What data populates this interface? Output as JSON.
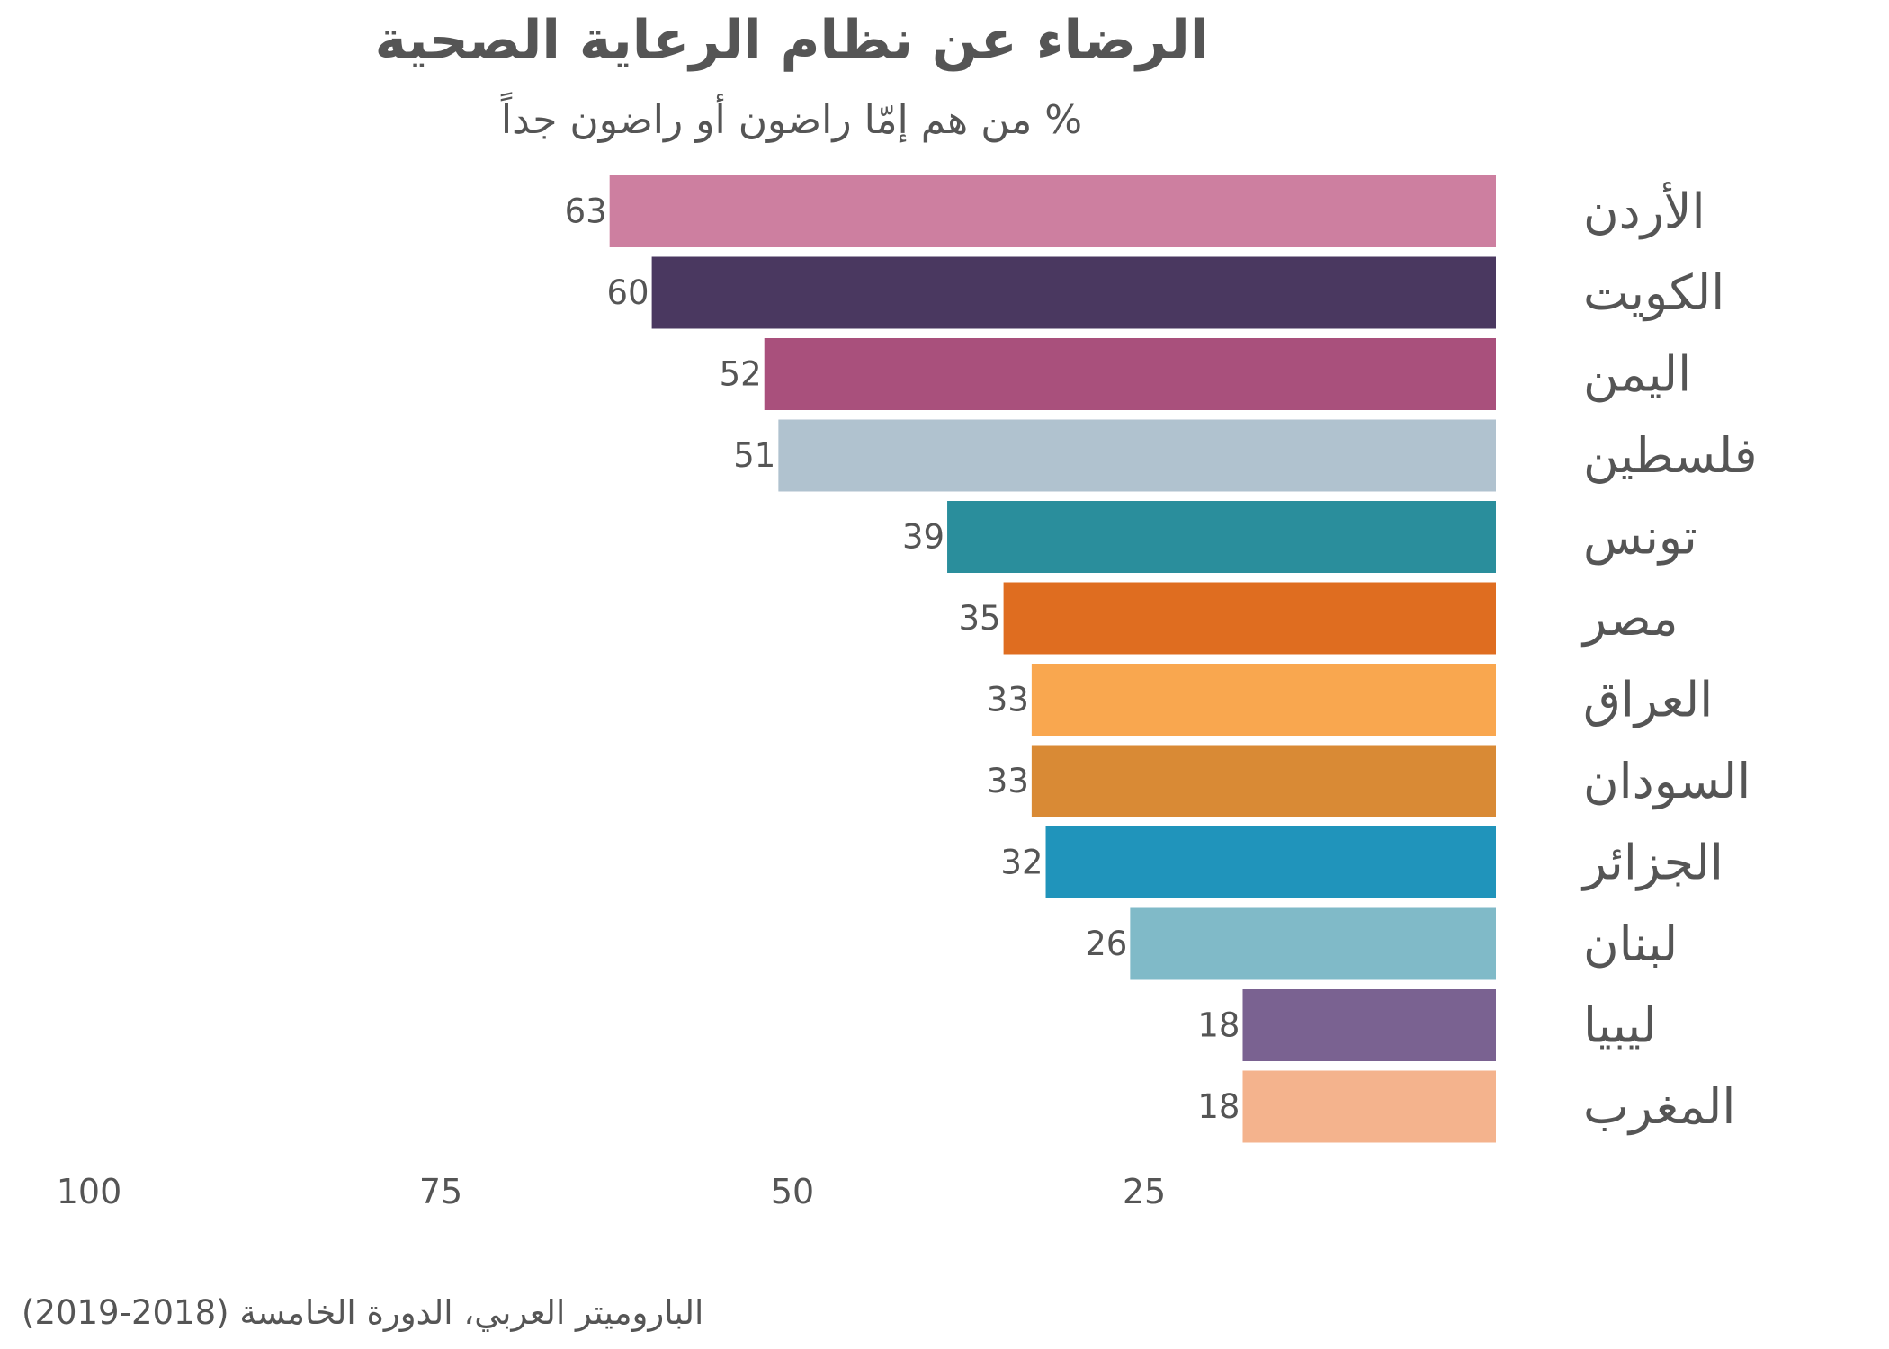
{
  "chart_data": {
    "type": "bar",
    "orientation": "horizontal",
    "title": "الرضاء عن نظام الرعاية الصحية",
    "subtitle": "% من هم إمّا راضون أو راضون جداً",
    "source": "الباروميتر العربي، الدورة الخامسة (2018-2019)",
    "categories": [
      "الأردن",
      "الكويت",
      "اليمن",
      "فلسطين",
      "تونس",
      "مصر",
      "العراق",
      "السودان",
      "الجزائر",
      "لبنان",
      "ليبيا",
      "المغرب"
    ],
    "values": [
      63,
      60,
      52,
      51,
      39,
      35,
      33,
      33,
      32,
      26,
      18,
      18
    ],
    "colors": [
      "#cd7fa0",
      "#4a3860",
      "#a9507c",
      "#b0c2cf",
      "#2a8e9c",
      "#df6d20",
      "#f9a74f",
      "#d98a35",
      "#2094bb",
      "#80bac8",
      "#7a6291",
      "#f4b38d"
    ],
    "xlim": [
      100,
      0
    ],
    "xticks": [
      100,
      75,
      50,
      25
    ],
    "xlabel": "",
    "ylabel": "",
    "grid": false,
    "legend": "none"
  }
}
